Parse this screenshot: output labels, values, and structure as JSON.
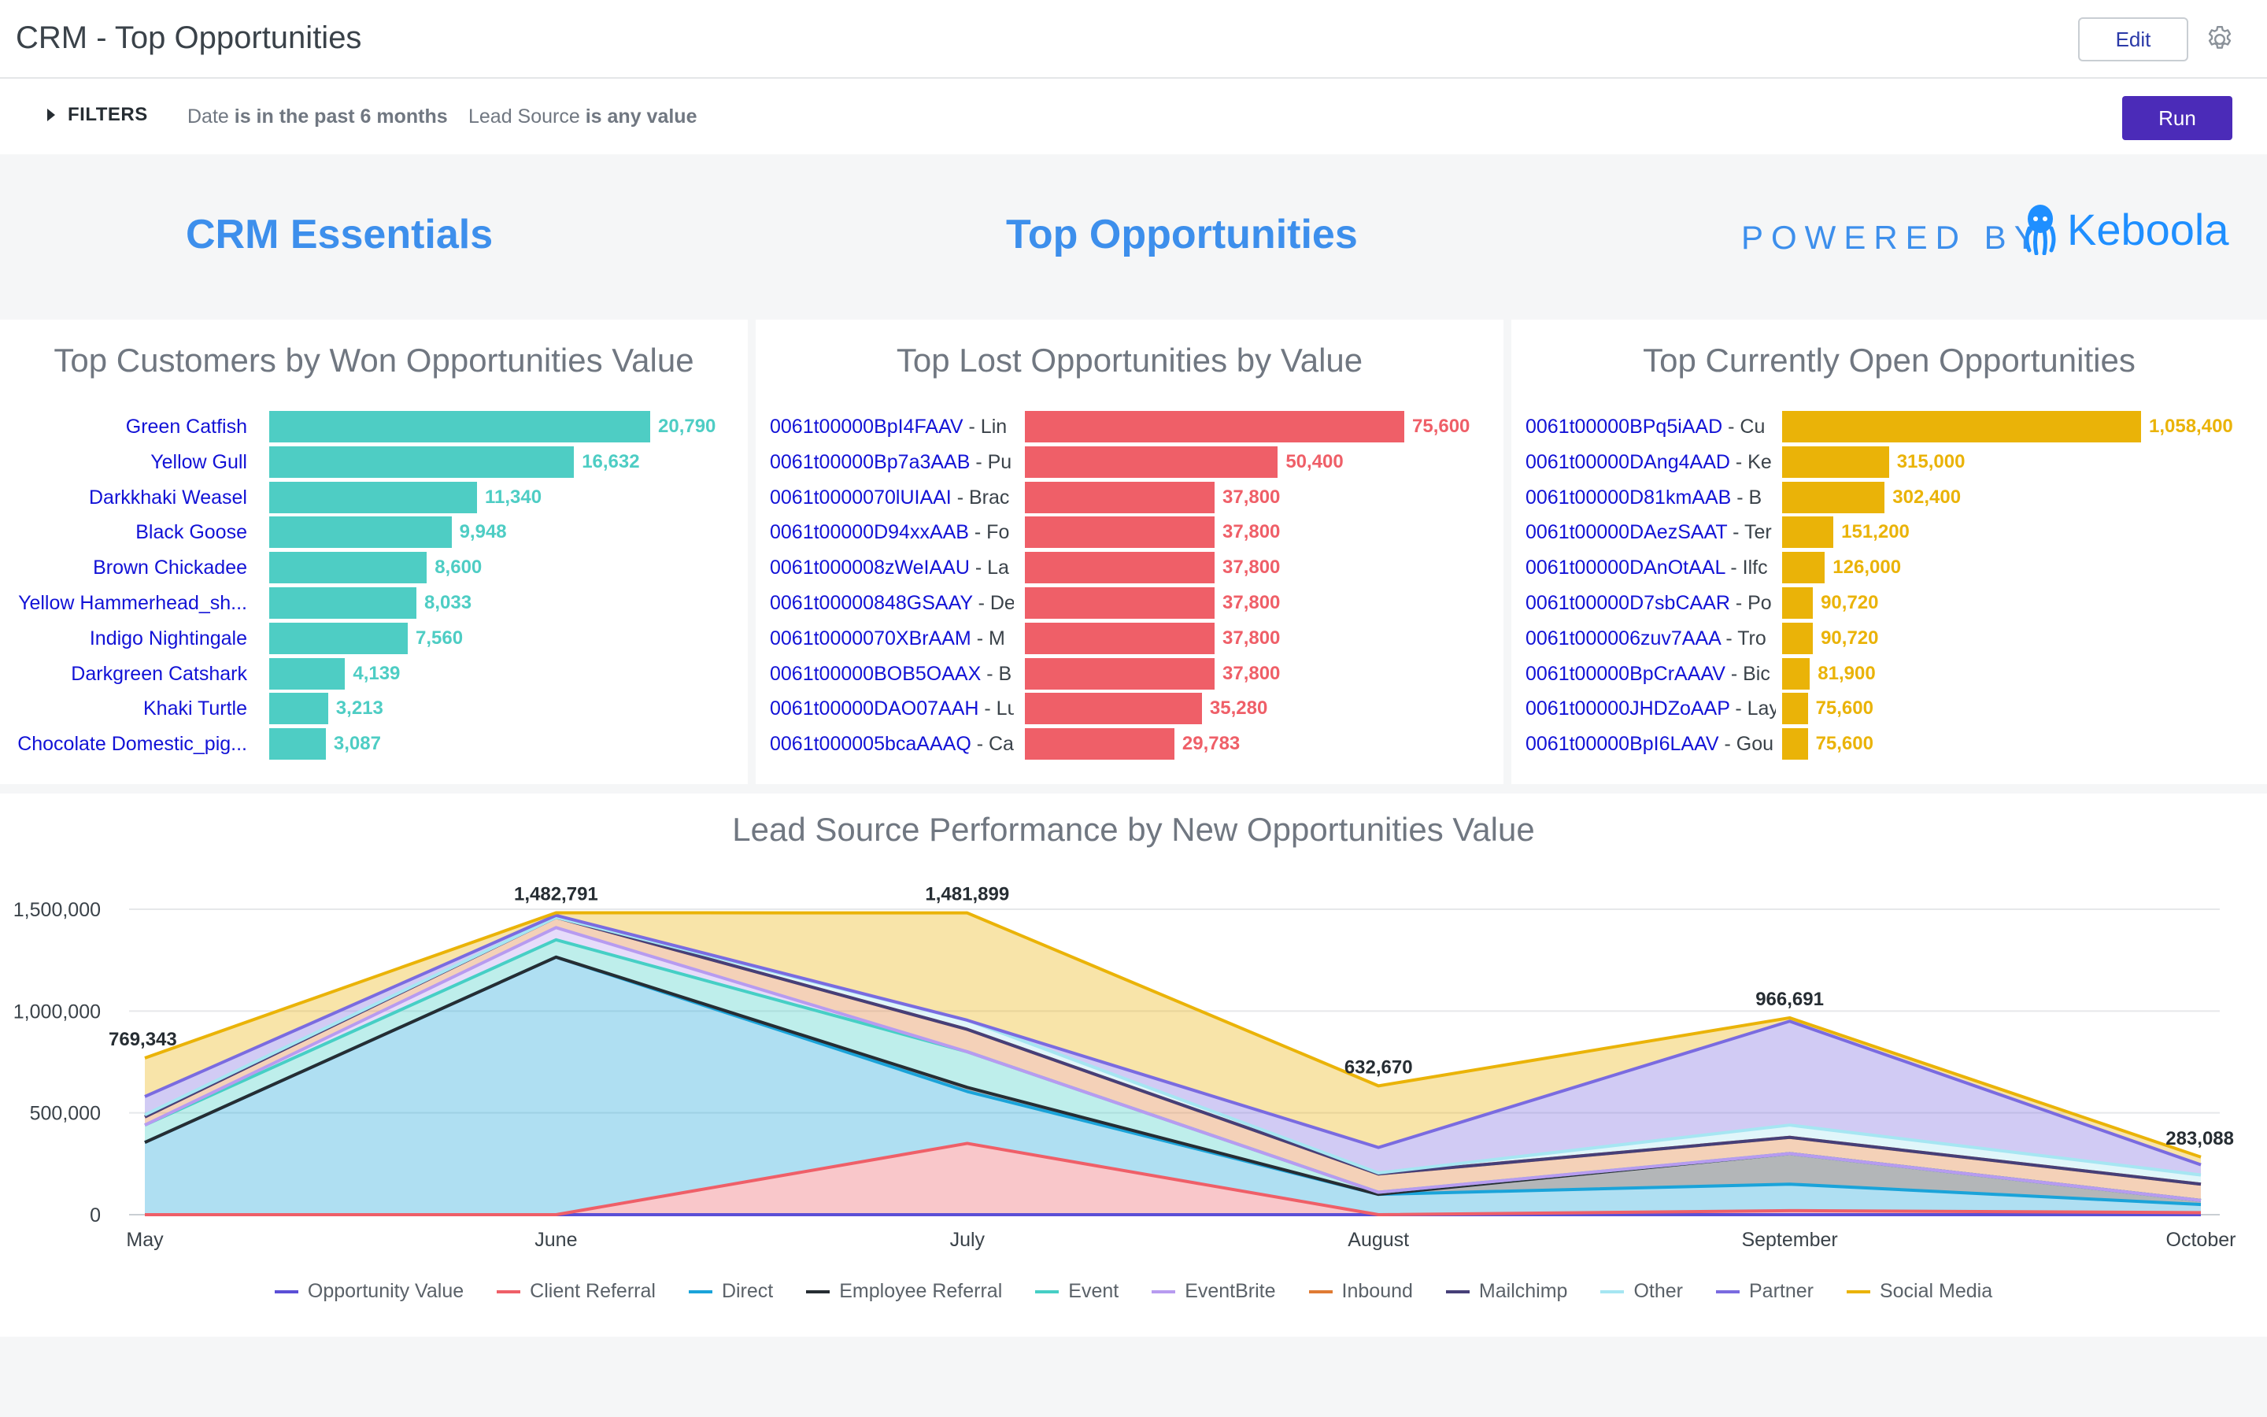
{
  "header": {
    "title": "CRM - Top Opportunities",
    "edit_label": "Edit"
  },
  "filters": {
    "toggle_label": "FILTERS",
    "items": [
      {
        "field": "Date",
        "condition": "is in the past 6 months"
      },
      {
        "field": "Lead Source",
        "condition": "is any value"
      }
    ],
    "run_label": "Run"
  },
  "banner": {
    "left_title": "CRM Essentials",
    "center_title": "Top Opportunities",
    "powered_by": "POWERED BY",
    "brand": "Keboola"
  },
  "colors": {
    "accent": "#3d8fec",
    "run_button": "#4b2bb8",
    "won": "#4ecdc4",
    "lost": "#ef5f68",
    "open": "#eab308"
  },
  "panels": {
    "won": {
      "title": "Top Customers by Won Opportunities Value",
      "rows": [
        {
          "name": "Green Catfish",
          "rest": "",
          "value": 20790,
          "label": "20,790"
        },
        {
          "name": "Yellow Gull",
          "rest": "",
          "value": 16632,
          "label": "16,632"
        },
        {
          "name": "Darkkhaki Weasel",
          "rest": "",
          "value": 11340,
          "label": "11,340"
        },
        {
          "name": "Black Goose",
          "rest": "",
          "value": 9948,
          "label": "9,948"
        },
        {
          "name": "Brown Chickadee",
          "rest": "",
          "value": 8600,
          "label": "8,600"
        },
        {
          "name": "Yellow Hammerhead_sh...",
          "rest": "",
          "value": 8033,
          "label": "8,033"
        },
        {
          "name": "Indigo Nightingale",
          "rest": "",
          "value": 7560,
          "label": "7,560"
        },
        {
          "name": "Darkgreen Catshark",
          "rest": "",
          "value": 4139,
          "label": "4,139"
        },
        {
          "name": "Khaki Turtle",
          "rest": "",
          "value": 3213,
          "label": "3,213"
        },
        {
          "name": "Chocolate Domestic_pig...",
          "rest": "",
          "value": 3087,
          "label": "3,087"
        }
      ]
    },
    "lost": {
      "title": "Top Lost Opportunities by Value",
      "rows": [
        {
          "name": "0061t00000BpI4FAAV",
          "rest": " - Lin",
          "value": 75600,
          "label": "75,600"
        },
        {
          "name": "0061t00000Bp7a3AAB",
          "rest": " - Pu",
          "value": 50400,
          "label": "50,400"
        },
        {
          "name": "0061t0000070lUIAAI",
          "rest": " - Brac",
          "value": 37800,
          "label": "37,800"
        },
        {
          "name": "0061t00000D94xxAAB",
          "rest": " - Fo",
          "value": 37800,
          "label": "37,800"
        },
        {
          "name": "0061t000008zWeIAAU",
          "rest": " - La",
          "value": 37800,
          "label": "37,800"
        },
        {
          "name": "0061t00000848GSAAY",
          "rest": " - De",
          "value": 37800,
          "label": "37,800"
        },
        {
          "name": "0061t0000070XBrAAM",
          "rest": " - M",
          "value": 37800,
          "label": "37,800"
        },
        {
          "name": "0061t00000BOB5OAAX",
          "rest": " - B",
          "value": 37800,
          "label": "37,800"
        },
        {
          "name": "0061t00000DAO07AAH",
          "rest": " - Lu",
          "value": 35280,
          "label": "35,280"
        },
        {
          "name": "0061t000005bcaAAAQ",
          "rest": " - Ca",
          "value": 29783,
          "label": "29,783"
        }
      ]
    },
    "open": {
      "title": "Top Currently Open Opportunities",
      "rows": [
        {
          "name": "0061t00000BPq5iAAD",
          "rest": " - Cu",
          "value": 1058400,
          "label": "1,058,400"
        },
        {
          "name": "0061t00000DAng4AAD",
          "rest": " - Ke",
          "value": 315000,
          "label": "315,000"
        },
        {
          "name": "0061t00000D81kmAAB",
          "rest": " - B",
          "value": 302400,
          "label": "302,400"
        },
        {
          "name": "0061t00000DAezSAAT",
          "rest": " - Ter",
          "value": 151200,
          "label": "151,200"
        },
        {
          "name": "0061t00000DAnOtAAL",
          "rest": " - Ilfc",
          "value": 126000,
          "label": "126,000"
        },
        {
          "name": "0061t00000D7sbCAAR",
          "rest": " - Po",
          "value": 90720,
          "label": "90,720"
        },
        {
          "name": "0061t000006zuv7AAA",
          "rest": " - Tro",
          "value": 90720,
          "label": "90,720"
        },
        {
          "name": "0061t00000BpCrAAAV",
          "rest": " - Bic",
          "value": 81900,
          "label": "81,900"
        },
        {
          "name": "0061t00000JHDZoAAP",
          "rest": " - Lay",
          "value": 75600,
          "label": "75,600"
        },
        {
          "name": "0061t00000BpI6LAAV",
          "rest": " - Gou",
          "value": 75600,
          "label": "75,600"
        }
      ]
    }
  },
  "chart_data": {
    "type": "area",
    "title": "Lead Source Performance by New Opportunities Value",
    "categories": [
      "May",
      "June",
      "July",
      "August",
      "September",
      "October"
    ],
    "ylim": [
      0,
      1500000
    ],
    "yticks": [
      0,
      500000,
      1000000,
      1500000
    ],
    "ytick_labels": [
      "0",
      "500,000",
      "1,000,000",
      "1,500,000"
    ],
    "stacked": true,
    "legend_position": "bottom",
    "grid": true,
    "totals": [
      769343,
      1482791,
      1481899,
      632670,
      966691,
      283088
    ],
    "total_labels": [
      "769,343",
      "1,482,791",
      "1,481,899",
      "632,670",
      "966,691",
      "283,088"
    ],
    "series": [
      {
        "name": "Opportunity Value",
        "color": "#5b4fd6",
        "values": [
          0,
          0,
          0,
          0,
          0,
          0
        ]
      },
      {
        "name": "Client Referral",
        "color": "#ef5f68",
        "values": [
          0,
          0,
          350000,
          0,
          20000,
          10000
        ]
      },
      {
        "name": "Direct",
        "color": "#1aa3d9",
        "values": [
          355000,
          1265000,
          255000,
          100000,
          130000,
          40000
        ]
      },
      {
        "name": "Employee Referral",
        "color": "#262d33",
        "values": [
          0,
          0,
          20000,
          0,
          150000,
          20000
        ]
      },
      {
        "name": "Event",
        "color": "#46cfc5",
        "values": [
          85000,
          85000,
          175000,
          10000,
          0,
          0
        ]
      },
      {
        "name": "EventBrite",
        "color": "#b79bf0",
        "values": [
          0,
          60000,
          0,
          0,
          0,
          0
        ]
      },
      {
        "name": "Inbound",
        "color": "#e07b34",
        "values": [
          40000,
          50000,
          110000,
          90000,
          80000,
          80000
        ]
      },
      {
        "name": "Mailchimp",
        "color": "#463f78",
        "values": [
          0,
          0,
          0,
          0,
          0,
          0
        ]
      },
      {
        "name": "Other",
        "color": "#a6e6f2",
        "values": [
          10000,
          0,
          45000,
          5000,
          60000,
          45000
        ]
      },
      {
        "name": "Partner",
        "color": "#7a6be0",
        "values": [
          90000,
          10000,
          0,
          125000,
          510000,
          50000
        ]
      },
      {
        "name": "Social Media",
        "color": "#eab308",
        "values": [
          189343,
          12791,
          526899,
          302670,
          16691,
          38088
        ]
      }
    ]
  }
}
